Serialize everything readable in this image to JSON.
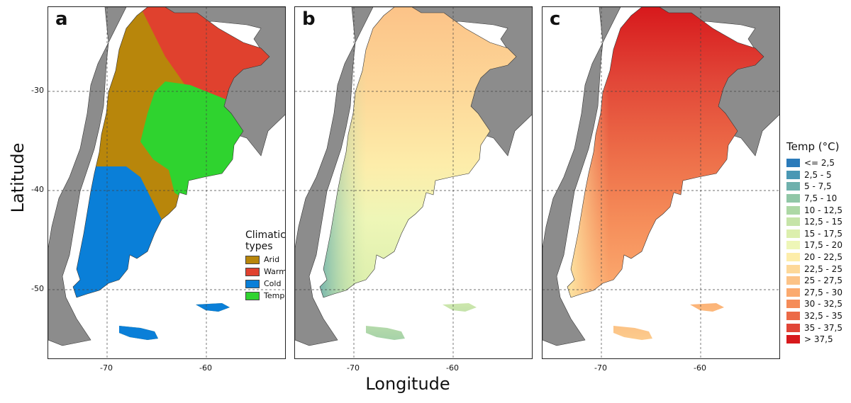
{
  "axes": {
    "xlabel": "Longitude",
    "ylabel": "Latitude",
    "yticks": [
      "-30",
      "-40",
      "-50"
    ],
    "xticks": [
      "-70",
      "-60"
    ]
  },
  "panels": [
    {
      "letter": "a",
      "map": "climatic-types"
    },
    {
      "letter": "b",
      "map": "minimum-temperature-gradient"
    },
    {
      "letter": "c",
      "map": "maximum-temperature-gradient"
    }
  ],
  "climate_legend": {
    "title": "Climatic types",
    "items": [
      {
        "label": "Arid",
        "color": "#b8860b"
      },
      {
        "label": "Warm",
        "color": "#e0412e"
      },
      {
        "label": "Cold",
        "color": "#0a7fd8"
      },
      {
        "label": "Temperate",
        "color": "#2fd32f"
      }
    ]
  },
  "temp_legend": {
    "title": "Temp (°C)",
    "items": [
      {
        "label": "<= 2,5",
        "color": "#2b7bba"
      },
      {
        "label": "2,5 - 5",
        "color": "#4a98b4"
      },
      {
        "label": "5 - 7,5",
        "color": "#6fb1ad"
      },
      {
        "label": "7,5 - 10",
        "color": "#91c7a7"
      },
      {
        "label": "10 - 12,5",
        "color": "#add8a5"
      },
      {
        "label": "12,5 - 15",
        "color": "#c6e4a8"
      },
      {
        "label": "15 - 17,5",
        "color": "#dcefad"
      },
      {
        "label": "17,5 - 20",
        "color": "#eef6b7"
      },
      {
        "label": "20 - 22,5",
        "color": "#fdedaa"
      },
      {
        "label": "22,5 - 25",
        "color": "#fdd899"
      },
      {
        "label": "25 - 27,5",
        "color": "#fcc388"
      },
      {
        "label": "27,5 - 30",
        "color": "#fbaa6f"
      },
      {
        "label": "30 - 32,5",
        "color": "#f58c59"
      },
      {
        "label": "32,5 - 35",
        "color": "#ec6a47"
      },
      {
        "label": "35 - 37,5",
        "color": "#e14537"
      },
      {
        "label": "> 37,5",
        "color": "#d7191c"
      }
    ]
  }
}
